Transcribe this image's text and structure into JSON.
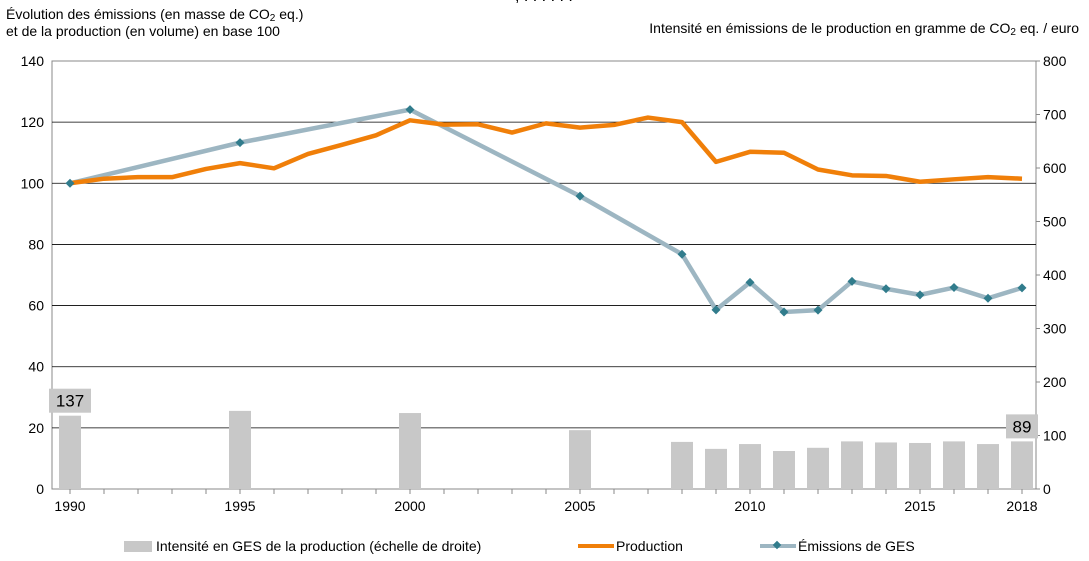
{
  "header_left": {
    "line1_pre": "Évolution  des émissions  (en masse de CO",
    "line1_sub": "2",
    "line1_post": " eq.)",
    "line2": "et de la production  (en volume)  en base 100"
  },
  "header_right": {
    "pre": "Intensité  en émissions de le production  en gramme de CO",
    "sub": "2",
    "post": " eq.  / euro"
  },
  "title_fragment": ", . . . . . .",
  "colors": {
    "production": "#f07f09",
    "emissions_line": "#9db6c2",
    "emissions_marker": "#317c8c",
    "bars": "#c8c8c8",
    "grid": "#000000",
    "label_box": "#c8c8c8"
  },
  "chart_data": {
    "type": "bar+line",
    "years": [
      1990,
      1991,
      1992,
      1993,
      1994,
      1995,
      1996,
      1997,
      1998,
      1999,
      2000,
      2001,
      2002,
      2003,
      2004,
      2005,
      2006,
      2007,
      2008,
      2009,
      2010,
      2011,
      2012,
      2013,
      2014,
      2015,
      2016,
      2017,
      2018
    ],
    "x_tick_labels": [
      "1990",
      "1995",
      "2000",
      "2005",
      "2010",
      "2015",
      "2018"
    ],
    "x_tick_values": [
      1990,
      1995,
      2000,
      2005,
      2010,
      2015,
      2018
    ],
    "y_left": {
      "min": 0,
      "max": 140,
      "ticks": [
        0,
        20,
        40,
        60,
        80,
        100,
        120,
        140
      ]
    },
    "y_right": {
      "min": 0,
      "max": 800,
      "ticks": [
        0,
        100,
        200,
        300,
        400,
        500,
        600,
        700,
        800
      ]
    },
    "series": [
      {
        "name": "Intensité en GES de la production (échelle de droite)",
        "type": "bar",
        "axis": "right",
        "points": [
          [
            1990,
            137
          ],
          [
            1995,
            146
          ],
          [
            2000,
            142
          ],
          [
            2005,
            110
          ],
          [
            2008,
            88
          ],
          [
            2009,
            75
          ],
          [
            2010,
            84
          ],
          [
            2011,
            71
          ],
          [
            2012,
            77
          ],
          [
            2013,
            89
          ],
          [
            2014,
            87
          ],
          [
            2015,
            86
          ],
          [
            2016,
            89
          ],
          [
            2017,
            84
          ],
          [
            2018,
            89
          ]
        ]
      },
      {
        "name": "Production",
        "type": "line",
        "axis": "left",
        "points": [
          [
            1990,
            100
          ],
          [
            1991,
            101.5
          ],
          [
            1992,
            102
          ],
          [
            1993,
            102
          ],
          [
            1994,
            104.7
          ],
          [
            1995,
            106.6
          ],
          [
            1996,
            104.9
          ],
          [
            1997,
            109.6
          ],
          [
            1998,
            112.6
          ],
          [
            1999,
            115.7
          ],
          [
            2000,
            120.6
          ],
          [
            2001,
            119.2
          ],
          [
            2002,
            119.3
          ],
          [
            2003,
            116.6
          ],
          [
            2004,
            119.6
          ],
          [
            2005,
            118.2
          ],
          [
            2006,
            119.1
          ],
          [
            2007,
            121.5
          ],
          [
            2008,
            120
          ],
          [
            2009,
            107
          ],
          [
            2010,
            110.3
          ],
          [
            2011,
            110
          ],
          [
            2012,
            104.5
          ],
          [
            2013,
            102.6
          ],
          [
            2014,
            102.4
          ],
          [
            2015,
            100.5
          ],
          [
            2016,
            101.3
          ],
          [
            2017,
            102
          ],
          [
            2018,
            101.5
          ]
        ]
      },
      {
        "name": "Émissions de GES",
        "type": "line",
        "axis": "left",
        "points": [
          [
            1990,
            100
          ],
          [
            1995,
            113.3
          ],
          [
            2000,
            124.1
          ],
          [
            2005,
            95.8
          ],
          [
            2008,
            76.8
          ],
          [
            2009,
            58.6
          ],
          [
            2010,
            67.6
          ],
          [
            2011,
            57.9
          ],
          [
            2012,
            58.5
          ],
          [
            2013,
            67.9
          ],
          [
            2014,
            65.5
          ],
          [
            2015,
            63.5
          ],
          [
            2016,
            65.9
          ],
          [
            2017,
            62.4
          ],
          [
            2018,
            65.8
          ]
        ]
      }
    ],
    "annotations": [
      {
        "year": 1990,
        "text": "137"
      },
      {
        "year": 2018,
        "text": "89"
      }
    ]
  },
  "legend": {
    "bars_label": "Intensité en GES de la production (échelle de droite)",
    "production_label": "Production",
    "emissions_label": "Émissions de GES"
  }
}
